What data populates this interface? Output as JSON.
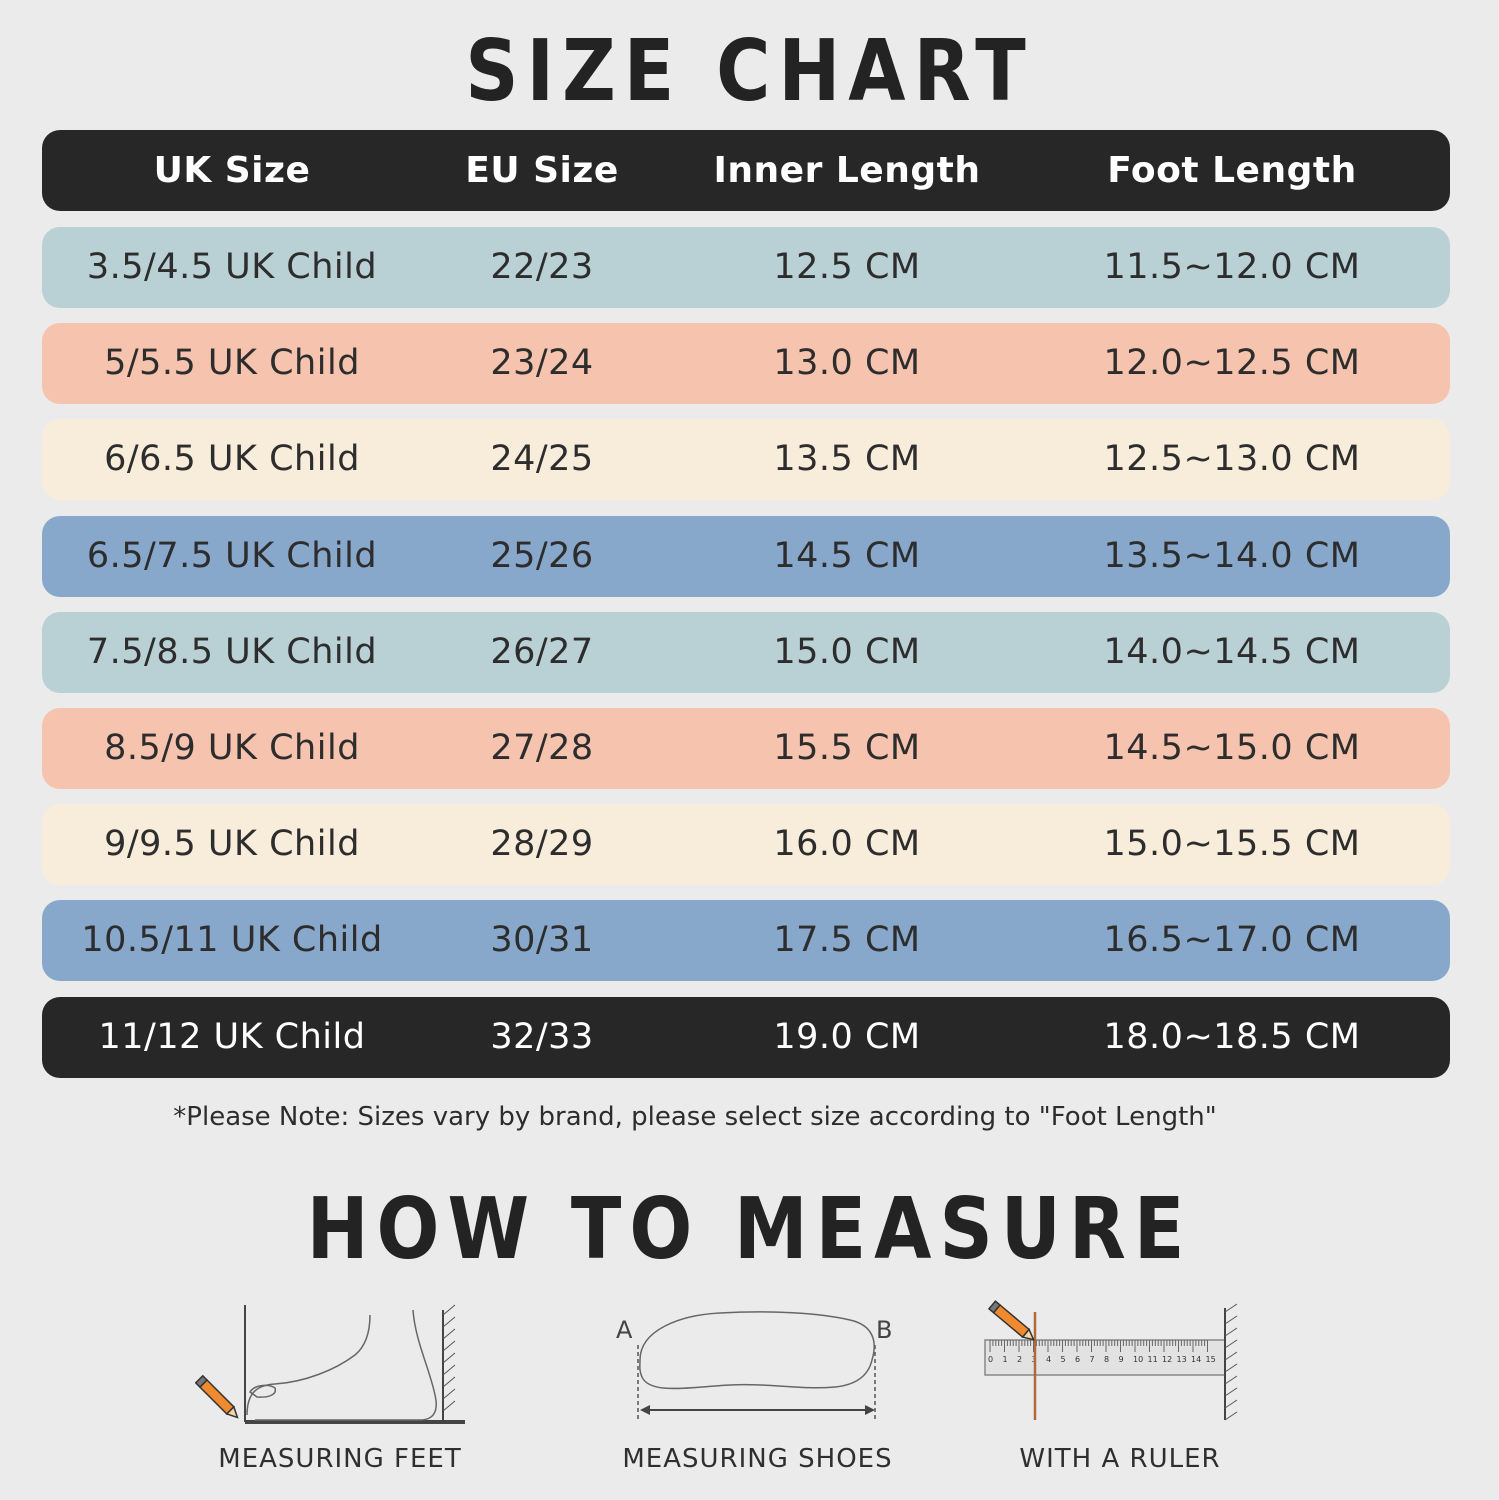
{
  "title": "SIZE CHART",
  "table": {
    "headers": [
      "UK Size",
      "EU Size",
      "Inner Length",
      "Foot Length"
    ],
    "rows": [
      {
        "uk": "3.5/4.5 UK Child",
        "eu": "22/23",
        "inner": "12.5 CM",
        "foot": "11.5~12.0 CM",
        "color": "#b9d1d5"
      },
      {
        "uk": "5/5.5 UK Child",
        "eu": "23/24",
        "inner": "13.0 CM",
        "foot": "12.0~12.5 CM",
        "color": "#f6c3ae"
      },
      {
        "uk": "6/6.5 UK Child",
        "eu": "24/25",
        "inner": "13.5 CM",
        "foot": "12.5~13.0 CM",
        "color": "#f8eddb"
      },
      {
        "uk": "6.5/7.5 UK Child",
        "eu": "25/26",
        "inner": "14.5 CM",
        "foot": "13.5~14.0 CM",
        "color": "#88a8cb"
      },
      {
        "uk": "7.5/8.5 UK Child",
        "eu": "26/27",
        "inner": "15.0 CM",
        "foot": "14.0~14.5 CM",
        "color": "#b9d1d5"
      },
      {
        "uk": "8.5/9 UK Child",
        "eu": "27/28",
        "inner": "15.5 CM",
        "foot": "14.5~15.0 CM",
        "color": "#f6c3ae"
      },
      {
        "uk": "9/9.5 UK Child",
        "eu": "28/29",
        "inner": "16.0 CM",
        "foot": "15.0~15.5 CM",
        "color": "#f8eddb"
      },
      {
        "uk": "10.5/11 UK Child",
        "eu": "30/31",
        "inner": "17.5 CM",
        "foot": "16.5~17.0 CM",
        "color": "#88a8cb"
      },
      {
        "uk": "11/12 UK Child",
        "eu": "32/33",
        "inner": "19.0 CM",
        "foot": "18.0~18.5 CM",
        "color": "#272727"
      }
    ]
  },
  "note": "*Please Note: Sizes vary by brand, please select size according to  \"Foot Length\"",
  "measure_title": "HOW TO MEASURE",
  "illustrations": {
    "feet": {
      "caption": "MEASURING FEET",
      "icon": "foot-icon"
    },
    "shoes": {
      "caption": "MEASURING SHOES",
      "icon": "shoe-sole-icon",
      "label_a": "A",
      "label_b": "B"
    },
    "ruler": {
      "caption": "WITH A RULER",
      "icon": "ruler-icon",
      "ticks": [
        "0",
        "1",
        "2",
        "3",
        "4",
        "5",
        "6",
        "7",
        "8",
        "9",
        "10",
        "11",
        "12",
        "13",
        "14",
        "15"
      ]
    }
  }
}
